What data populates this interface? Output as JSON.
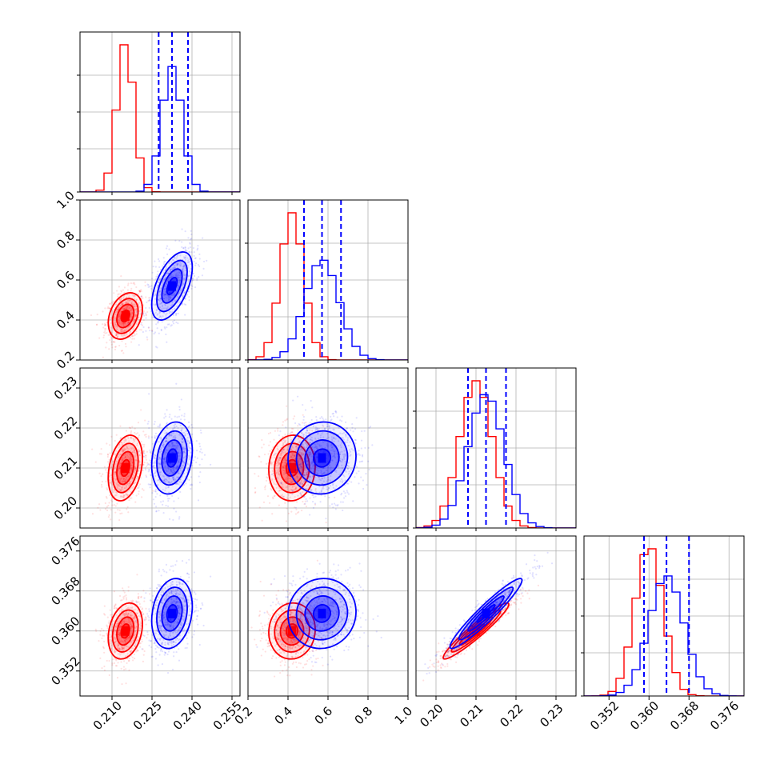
{
  "chart_data": {
    "type": "corner",
    "colors": {
      "red": "#ff0000",
      "blue": "#0000ff",
      "grid": "#b0b0b0"
    },
    "parameters": [
      {
        "range": [
          0.198,
          0.258
        ],
        "ticks": [
          "0.210",
          "0.225",
          "0.240",
          "0.255"
        ],
        "tick_values": [
          0.21,
          0.225,
          0.24,
          0.255
        ]
      },
      {
        "range": [
          0.2,
          1.0
        ],
        "ticks": [
          "0.2",
          "0.4",
          "0.6",
          "0.8",
          "1.0"
        ],
        "tick_values": [
          0.2,
          0.4,
          0.6,
          0.8,
          1.0
        ]
      },
      {
        "range": [
          0.195,
          0.235
        ],
        "ticks": [
          "0.20",
          "0.21",
          "0.22",
          "0.23"
        ],
        "tick_values": [
          0.2,
          0.21,
          0.22,
          0.23
        ]
      },
      {
        "range": [
          0.347,
          0.379
        ],
        "ticks": [
          "0.352",
          "0.360",
          "0.368",
          "0.376"
        ],
        "tick_values": [
          0.352,
          0.36,
          0.368,
          0.376
        ]
      }
    ],
    "series": [
      {
        "color": "red",
        "means": [
          0.215,
          0.42,
          0.21,
          0.36
        ],
        "stds": [
          0.0032,
          0.058,
          0.0041,
          0.0028
        ],
        "correlations": [
          [
            1.0,
            0.3,
            0.3,
            0.25
          ],
          [
            0.3,
            1.0,
            0.05,
            0.05
          ],
          [
            0.3,
            0.05,
            1.0,
            0.95
          ],
          [
            0.25,
            0.05,
            0.95,
            1.0
          ]
        ],
        "hist_peaks": [
          0.215,
          0.4,
          0.21,
          0.36
        ]
      },
      {
        "color": "blue",
        "means": [
          0.2325,
          0.57,
          0.2125,
          0.3635
        ],
        "stds": [
          0.0038,
          0.085,
          0.0045,
          0.0035
        ],
        "correlations": [
          [
            1.0,
            0.55,
            0.2,
            0.2
          ],
          [
            0.55,
            1.0,
            0.05,
            0.05
          ],
          [
            0.2,
            0.05,
            1.0,
            0.95
          ],
          [
            0.2,
            0.05,
            0.95,
            1.0
          ]
        ],
        "quantiles": [
          [
            0.2275,
            0.2325,
            0.2385
          ],
          [
            0.48,
            0.57,
            0.665
          ],
          [
            0.208,
            0.2125,
            0.2175
          ],
          [
            0.359,
            0.3635,
            0.368
          ]
        ]
      }
    ],
    "contour_levels_sigma": [
      0.5,
      1.0,
      1.5,
      2.0
    ],
    "grid": true
  }
}
